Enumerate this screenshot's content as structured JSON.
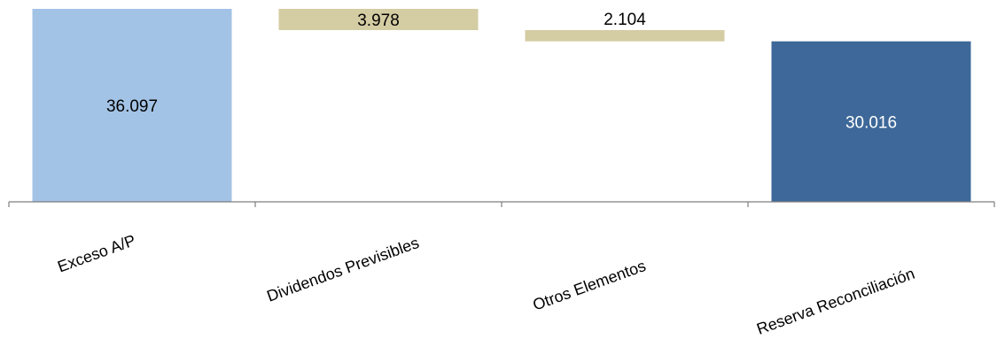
{
  "chart_data": {
    "type": "waterfall",
    "categories": [
      "Exceso A/P",
      "Dividendos Previsibles",
      "Otros Elementos",
      "Reserva Reconciliación"
    ],
    "values": [
      36.097,
      -3.978,
      -2.104,
      30.016
    ],
    "value_labels": [
      "36.097",
      "3.978",
      "2.104",
      "30.016"
    ],
    "bar_kinds": [
      "total",
      "decrease",
      "decrease",
      "total"
    ],
    "ylim": [
      0,
      36.097
    ],
    "grid": false,
    "legend": "none",
    "colors": {
      "start_total": "#a3c3e6",
      "change": "#d4cca3",
      "end_total": "#3d6899",
      "axis": "#7f7f7f",
      "dark_text": "#000000",
      "light_text": "#ffffff"
    }
  }
}
